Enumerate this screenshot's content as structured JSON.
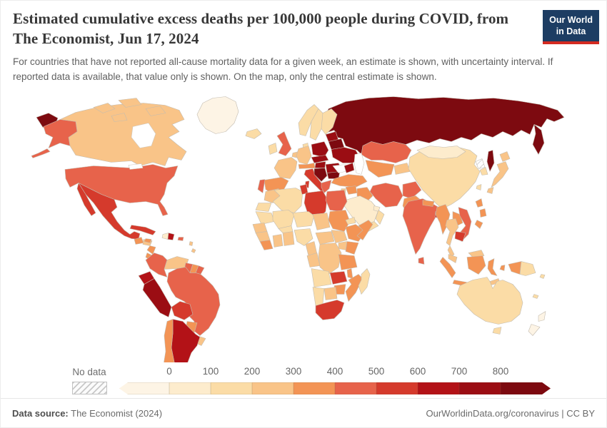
{
  "header": {
    "title": "Estimated cumulative excess deaths per 100,000 people during COVID, from The Economist, Jun 17, 2024",
    "subtitle": "For countries that have not reported all-cause mortality data for a given week, an estimate is shown, with uncertainty interval. If reported data is available, that value only is shown. On the map, only the central estimate is shown.",
    "logo_line1": "Our World",
    "logo_line2": "in Data",
    "logo_bg": "#1d3d63",
    "logo_accent": "#d42b21"
  },
  "legend": {
    "no_data_label": "No data"
  },
  "footer": {
    "source_label": "Data source:",
    "source_value": " The Economist (2024)",
    "attribution": "OurWorldinData.org/coronavirus | CC BY"
  },
  "chart_data": {
    "type": "choropleth",
    "title": "Estimated cumulative excess deaths per 100,000 people during COVID, from The Economist, Jun 17, 2024",
    "unit": "excess deaths per 100,000 people",
    "legend_ticks": [
      "0",
      "100",
      "200",
      "300",
      "400",
      "500",
      "600",
      "700",
      "800"
    ],
    "bin_labels": [
      "below-0",
      "0-100",
      "100-200",
      "200-300",
      "300-400",
      "400-500",
      "500-600",
      "600-700",
      "700-800",
      "above-800"
    ],
    "palette": [
      "#fdf4e5",
      "#fdeccd",
      "#fbdca6",
      "#f9c488",
      "#f39455",
      "#e7634b",
      "#d53a2c",
      "#b31217",
      "#9b0d13",
      "#7d0a10"
    ],
    "no_data": {
      "label": "No data",
      "pattern": "gray-diagonal-hatch"
    },
    "countries": {
      "russia": {
        "name": "Russia",
        "bin": 9
      },
      "canada": {
        "name": "Canada",
        "bin": 3
      },
      "greenland": {
        "name": "Greenland",
        "bin": 0
      },
      "usa": {
        "name": "United States",
        "bin": 5
      },
      "mexico": {
        "name": "Mexico",
        "bin": 6
      },
      "guatemala": {
        "name": "Guatemala",
        "bin": 4
      },
      "honduras": {
        "name": "Honduras",
        "bin": 3
      },
      "nicaragua": {
        "name": "Nicaragua",
        "bin": 4
      },
      "costa_rica": {
        "name": "Costa Rica",
        "bin": 4
      },
      "panama": {
        "name": "Panama",
        "bin": 4
      },
      "cuba": {
        "name": "Cuba",
        "bin": 6
      },
      "jamaica": {
        "name": "Jamaica",
        "bin": 4
      },
      "haiti": {
        "name": "Haiti",
        "bin": 1
      },
      "dominican_republic": {
        "name": "Dominican Republic",
        "bin": 7
      },
      "puerto_rico": {
        "name": "Puerto Rico",
        "bin": 5
      },
      "lesser_antilles": {
        "name": "Lesser Antilles",
        "bin": 3
      },
      "colombia": {
        "name": "Colombia",
        "bin": 5
      },
      "venezuela": {
        "name": "Venezuela",
        "bin": 3
      },
      "guyana": {
        "name": "Guyana",
        "bin": 5
      },
      "suriname": {
        "name": "Suriname",
        "bin": 4
      },
      "french_guiana": {
        "name": "French Guiana",
        "bin": 5
      },
      "ecuador": {
        "name": "Ecuador",
        "bin": 7
      },
      "peru": {
        "name": "Peru",
        "bin": 8
      },
      "brazil": {
        "name": "Brazil",
        "bin": 5
      },
      "bolivia": {
        "name": "Bolivia",
        "bin": 6
      },
      "paraguay": {
        "name": "Paraguay",
        "bin": 4
      },
      "uruguay": {
        "name": "Uruguay",
        "bin": 3
      },
      "argentina": {
        "name": "Argentina",
        "bin": 7
      },
      "chile": {
        "name": "Chile",
        "bin": 4
      },
      "iceland": {
        "name": "Iceland",
        "bin": 2
      },
      "norway": {
        "name": "Norway",
        "bin": 2
      },
      "sweden": {
        "name": "Sweden",
        "bin": 2
      },
      "finland": {
        "name": "Finland",
        "bin": 2
      },
      "denmark": {
        "name": "Denmark",
        "bin": 2
      },
      "uk": {
        "name": "United Kingdom",
        "bin": 5
      },
      "ireland": {
        "name": "Ireland",
        "bin": 2
      },
      "benelux": {
        "name": "Netherlands & Belgium",
        "bin": 3
      },
      "france": {
        "name": "France",
        "bin": 3
      },
      "spain": {
        "name": "Spain",
        "bin": 4
      },
      "portugal": {
        "name": "Portugal",
        "bin": 5
      },
      "germany": {
        "name": "Germany",
        "bin": 3
      },
      "alpine": {
        "name": "Switzerland & Austria",
        "bin": 4
      },
      "italy": {
        "name": "Italy",
        "bin": 6
      },
      "poland": {
        "name": "Poland",
        "bin": 8
      },
      "czech_slovakia": {
        "name": "Czechia & Slovakia",
        "bin": 8
      },
      "hungary": {
        "name": "Hungary",
        "bin": 8
      },
      "balkans": {
        "name": "Western Balkans",
        "bin": 9
      },
      "greece": {
        "name": "Greece",
        "bin": 5
      },
      "bulgaria": {
        "name": "Bulgaria",
        "bin": 9
      },
      "romania": {
        "name": "Romania",
        "bin": 8
      },
      "baltics": {
        "name": "Baltic states",
        "bin": 8
      },
      "belarus": {
        "name": "Belarus",
        "bin": 9
      },
      "ukraine": {
        "name": "Ukraine",
        "bin": 8
      },
      "kazakhstan": {
        "name": "Kazakhstan",
        "bin": 5
      },
      "central_asia": {
        "name": "Uzbekistan & Turkmenistan",
        "bin": 4
      },
      "kyrgyz_tajik": {
        "name": "Kyrgyzstan & Tajikistan",
        "bin": 3
      },
      "caucasus": {
        "name": "Caucasus states",
        "bin": 8
      },
      "turkey": {
        "name": "Turkey",
        "bin": 4
      },
      "syria": {
        "name": "Syria",
        "bin": 4
      },
      "levant": {
        "name": "Jordan & Israel",
        "bin": 3
      },
      "iraq": {
        "name": "Iraq",
        "bin": 4
      },
      "iran": {
        "name": "Iran",
        "bin": 5
      },
      "afghanistan": {
        "name": "Afghanistan",
        "bin": 5
      },
      "pakistan": {
        "name": "Pakistan",
        "bin": 4
      },
      "saudi_arabia": {
        "name": "Saudi Arabia",
        "bin": 1
      },
      "yemen": {
        "name": "Yemen",
        "bin": 2
      },
      "oman": {
        "name": "Oman",
        "bin": 2
      },
      "gulf_states": {
        "name": "Gulf states",
        "bin": 1
      },
      "india": {
        "name": "India",
        "bin": 5
      },
      "nepal": {
        "name": "Nepal",
        "bin": 4
      },
      "bangladesh": {
        "name": "Bangladesh",
        "bin": 6
      },
      "sri_lanka": {
        "name": "Sri Lanka",
        "bin": 5
      },
      "china": {
        "name": "China",
        "bin": 2
      },
      "mongolia": {
        "name": "Mongolia",
        "bin": 1
      },
      "taiwan": {
        "name": "Taiwan",
        "bin": 2
      },
      "north_korea": {
        "name": "North Korea",
        "bin": -1
      },
      "south_korea": {
        "name": "South Korea",
        "bin": 2
      },
      "japan": {
        "name": "Japan",
        "bin": 3
      },
      "myanmar": {
        "name": "Myanmar",
        "bin": 4
      },
      "thailand": {
        "name": "Thailand",
        "bin": 3
      },
      "laos": {
        "name": "Laos",
        "bin": 4
      },
      "vietnam": {
        "name": "Vietnam",
        "bin": 5
      },
      "cambodia": {
        "name": "Cambodia",
        "bin": 6
      },
      "malaysia": {
        "name": "Malaysia",
        "bin": 3
      },
      "indonesia": {
        "name": "Indonesia",
        "bin": 4
      },
      "philippines": {
        "name": "Philippines",
        "bin": 4
      },
      "timor": {
        "name": "Timor-Leste",
        "bin": 3
      },
      "papua_new_guinea": {
        "name": "Papua New Guinea",
        "bin": 2
      },
      "solomon": {
        "name": "Solomon Islands",
        "bin": 2
      },
      "morocco": {
        "name": "Morocco",
        "bin": 3
      },
      "western_sahara": {
        "name": "Western Sahara",
        "bin": 2
      },
      "algeria": {
        "name": "Algeria",
        "bin": 2
      },
      "tunisia": {
        "name": "Tunisia",
        "bin": 6
      },
      "libya": {
        "name": "Libya",
        "bin": 6
      },
      "egypt": {
        "name": "Egypt",
        "bin": 5
      },
      "mauritania": {
        "name": "Mauritania",
        "bin": 2
      },
      "mali": {
        "name": "Mali",
        "bin": 2
      },
      "niger": {
        "name": "Niger",
        "bin": 2
      },
      "chad": {
        "name": "Chad",
        "bin": 3
      },
      "sudan": {
        "name": "Sudan",
        "bin": 4
      },
      "eritrea": {
        "name": "Eritrea",
        "bin": 2
      },
      "senegal": {
        "name": "Senegal",
        "bin": 3
      },
      "guinea": {
        "name": "Guinea",
        "bin": 3
      },
      "sierra_liberia": {
        "name": "Sierra Leone & Liberia",
        "bin": 4
      },
      "ivory_coast": {
        "name": "Côte d'Ivoire",
        "bin": 3
      },
      "ghana": {
        "name": "Ghana, Togo & Benin",
        "bin": 3
      },
      "burkina_faso": {
        "name": "Burkina Faso",
        "bin": 2
      },
      "nigeria": {
        "name": "Nigeria",
        "bin": 2
      },
      "cameroon": {
        "name": "Cameroon",
        "bin": 3
      },
      "central_african_republic": {
        "name": "Central African Republic",
        "bin": 3
      },
      "south_sudan": {
        "name": "South Sudan",
        "bin": 3
      },
      "ethiopia": {
        "name": "Ethiopia",
        "bin": 4
      },
      "somalia": {
        "name": "Somalia",
        "bin": 4
      },
      "congo": {
        "name": "Congo & Gabon",
        "bin": 3
      },
      "drc": {
        "name": "Democratic Republic of Congo",
        "bin": 3
      },
      "uganda": {
        "name": "Uganda",
        "bin": 3
      },
      "kenya": {
        "name": "Kenya",
        "bin": 4
      },
      "tanzania": {
        "name": "Tanzania",
        "bin": 4
      },
      "angola": {
        "name": "Angola",
        "bin": 2
      },
      "zambia": {
        "name": "Zambia",
        "bin": 6
      },
      "malawi": {
        "name": "Malawi",
        "bin": 4
      },
      "mozambique": {
        "name": "Mozambique",
        "bin": 4
      },
      "zimbabwe": {
        "name": "Zimbabwe",
        "bin": 4
      },
      "botswana": {
        "name": "Botswana",
        "bin": 3
      },
      "namibia": {
        "name": "Namibia",
        "bin": 2
      },
      "south_africa": {
        "name": "South Africa",
        "bin": 6
      },
      "madagascar": {
        "name": "Madagascar",
        "bin": 2
      },
      "australia": {
        "name": "Australia",
        "bin": 2
      },
      "new_zealand": {
        "name": "New Zealand",
        "bin": 0
      },
      "new_caledonia": {
        "name": "New Caledonia",
        "bin": 2
      }
    }
  }
}
